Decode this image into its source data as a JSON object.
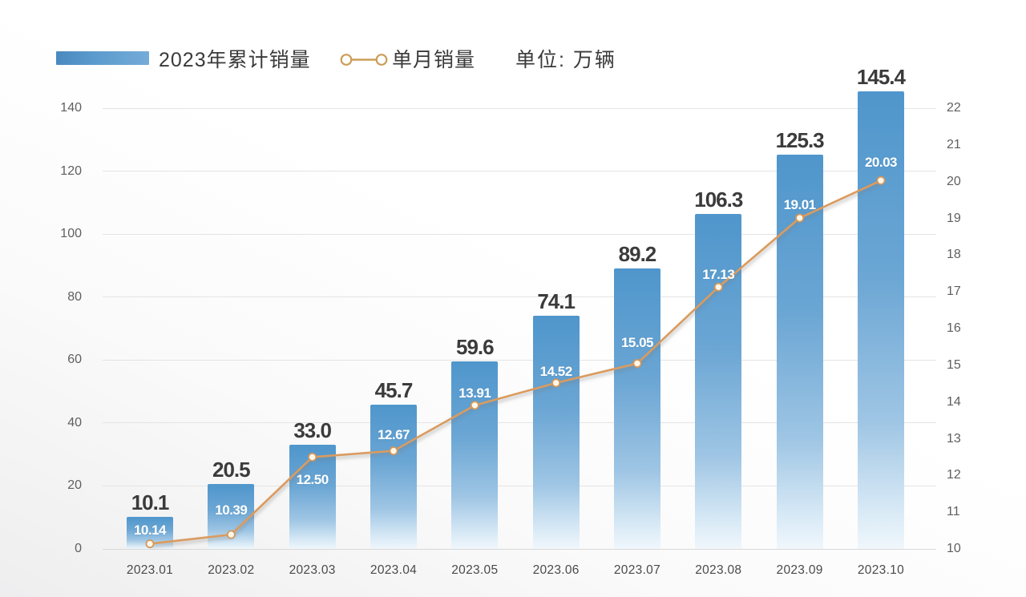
{
  "legend": {
    "bar_label": "2023年累计销量",
    "line_label": "单月销量",
    "unit_label": "单位: 万辆"
  },
  "colors": {
    "bar_top": "#4f96cc",
    "bar_bottom": "#f0f7fc",
    "line": "#db9b5e",
    "marker_fill": "#fef7e9",
    "marker_stroke": "#d2985c",
    "grid": "#e4e4e4",
    "bar_value_label": "#3b3b3b",
    "point_value_label": "#ffffff",
    "legend_text": "#3a3a3a",
    "tick_text": "#5f5f5f"
  },
  "chart_data": {
    "type": "bar",
    "subtype": "bar+line dual axis",
    "title": "",
    "unit": "万辆",
    "categories": [
      "2023.01",
      "2023.02",
      "2023.03",
      "2023.04",
      "2023.05",
      "2023.06",
      "2023.07",
      "2023.08",
      "2023.09",
      "2023.10"
    ],
    "series": [
      {
        "name": "2023年累计销量",
        "type": "bar",
        "axis": "left",
        "values": [
          10.1,
          20.5,
          33.0,
          45.7,
          59.6,
          74.1,
          89.2,
          106.3,
          125.3,
          145.4
        ],
        "labels": [
          "10.1",
          "20.5",
          "33.0",
          "45.7",
          "59.6",
          "74.1",
          "89.2",
          "106.3",
          "125.3",
          "145.4"
        ]
      },
      {
        "name": "单月销量",
        "type": "line",
        "axis": "right",
        "values": [
          10.14,
          10.39,
          12.5,
          12.67,
          13.91,
          14.52,
          15.05,
          17.13,
          19.01,
          20.03
        ],
        "labels": [
          "10.14",
          "10.39",
          "12.50",
          "12.67",
          "13.91",
          "14.52",
          "15.05",
          "17.13",
          "19.01",
          "20.03"
        ]
      }
    ],
    "left_axis": {
      "min": 0,
      "max": 140,
      "step": 20,
      "ticks": [
        0,
        20,
        40,
        60,
        80,
        100,
        120,
        140
      ]
    },
    "right_axis": {
      "min": 10,
      "max": 22,
      "step": 1,
      "ticks": [
        10,
        11,
        12,
        13,
        14,
        15,
        16,
        17,
        18,
        19,
        20,
        21,
        22
      ]
    },
    "grid": "horizontal",
    "legend_position": "top-left",
    "layout_hints": {
      "point_label_offsets": [
        -17,
        -30,
        29,
        -20,
        -15,
        -14,
        -26,
        -15,
        -16,
        -22
      ],
      "point_label_side_note": "monthly labels above markers except 2023.03 below"
    }
  }
}
